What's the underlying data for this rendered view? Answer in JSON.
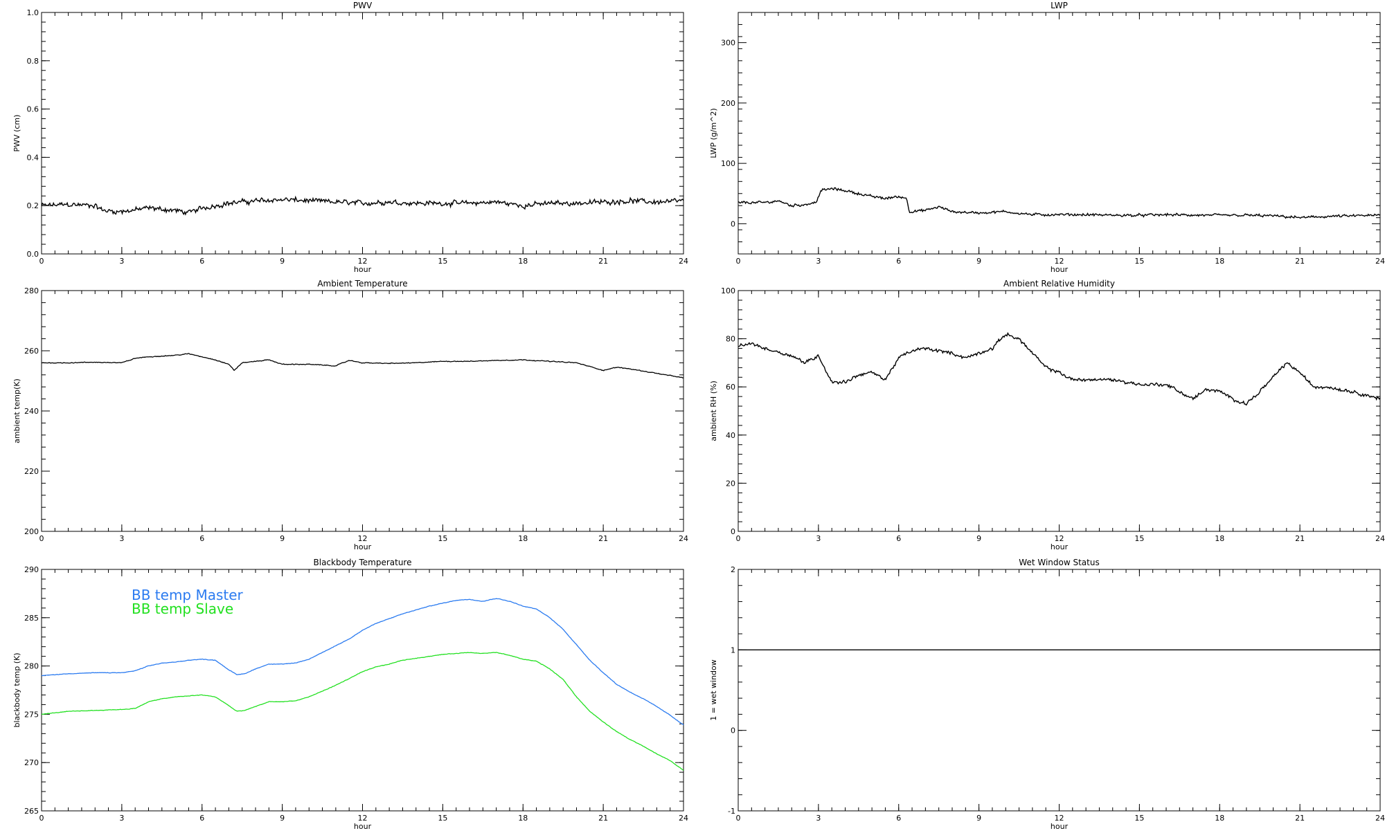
{
  "chart_data": [
    {
      "id": "pwv",
      "type": "line",
      "title": "PWV",
      "xlabel": "hour",
      "ylabel": "PWV (cm)",
      "xlim": [
        0,
        24
      ],
      "ylim": [
        0.0,
        1.0
      ],
      "xticks": [
        "0",
        "3",
        "6",
        "9",
        "12",
        "15",
        "18",
        "21",
        "24"
      ],
      "yticks": [
        "0.0",
        "0.2",
        "0.4",
        "0.6",
        "0.8",
        "1.0"
      ],
      "series": [
        {
          "color": "#000000",
          "noise": 0.012,
          "x": [
            0,
            1,
            2,
            2.3,
            3,
            4,
            5,
            5.5,
            6,
            7,
            8,
            9,
            10,
            11,
            12,
            13,
            14,
            15,
            16,
            17,
            18,
            19,
            20,
            21,
            22,
            23,
            24
          ],
          "y": [
            0.2,
            0.205,
            0.2,
            0.18,
            0.175,
            0.19,
            0.18,
            0.17,
            0.19,
            0.21,
            0.22,
            0.225,
            0.22,
            0.215,
            0.21,
            0.215,
            0.21,
            0.21,
            0.21,
            0.215,
            0.2,
            0.21,
            0.21,
            0.215,
            0.22,
            0.215,
            0.22
          ]
        }
      ]
    },
    {
      "id": "lwp",
      "type": "line",
      "title": "LWP",
      "xlabel": "hour",
      "ylabel": "LWP (g/m^2)",
      "xlim": [
        0,
        24
      ],
      "ylim": [
        -50,
        350
      ],
      "xticks": [
        "0",
        "3",
        "6",
        "9",
        "12",
        "15",
        "18",
        "21",
        "24"
      ],
      "yticks": [
        "0",
        "100",
        "200",
        "300"
      ],
      "series": [
        {
          "color": "#000000",
          "noise": 2.5,
          "x": [
            0,
            1,
            1.5,
            2,
            2.5,
            2.9,
            3.1,
            3.5,
            4,
            4.5,
            5,
            5.5,
            6,
            6.3,
            6.4,
            7,
            7.5,
            8,
            9,
            10,
            11,
            12,
            13,
            14,
            15,
            16,
            17,
            18,
            19,
            20,
            21,
            22,
            23,
            24
          ],
          "y": [
            35,
            35,
            38,
            30,
            32,
            35,
            55,
            58,
            55,
            50,
            45,
            42,
            45,
            42,
            20,
            22,
            28,
            20,
            18,
            20,
            15,
            15,
            15,
            14,
            14,
            15,
            14,
            14,
            14,
            13,
            10,
            12,
            13,
            14
          ]
        }
      ]
    },
    {
      "id": "ambient_temp",
      "type": "line",
      "title": "Ambient Temperature",
      "xlabel": "hour",
      "ylabel": "ambient temp(K)",
      "xlim": [
        0,
        24
      ],
      "ylim": [
        200,
        280
      ],
      "xticks": [
        "0",
        "3",
        "6",
        "9",
        "12",
        "15",
        "18",
        "21",
        "24"
      ],
      "yticks": [
        "200",
        "220",
        "240",
        "260",
        "280"
      ],
      "series": [
        {
          "color": "#000000",
          "noise": 0.15,
          "x": [
            0,
            1,
            2,
            3,
            3.5,
            4,
            5,
            5.5,
            6,
            6.5,
            7,
            7.2,
            7.5,
            8,
            8.5,
            9,
            10,
            11,
            11.5,
            12,
            13,
            14,
            15,
            16,
            17,
            18,
            19,
            20,
            21,
            21.5,
            22,
            23,
            24
          ],
          "y": [
            256,
            256,
            256.2,
            256,
            257.5,
            258,
            258.5,
            259,
            258,
            257,
            255.5,
            253.5,
            256,
            256.5,
            257,
            255.5,
            255.5,
            255,
            256.8,
            256,
            255.8,
            256,
            256.5,
            256.5,
            256.8,
            257,
            256.5,
            256,
            253.5,
            254.5,
            254,
            252.5,
            251
          ]
        }
      ]
    },
    {
      "id": "ambient_rh",
      "type": "line",
      "title": "Ambient Relative Humidity",
      "xlabel": "hour",
      "ylabel": "ambient RH (%)",
      "xlim": [
        0,
        24
      ],
      "ylim": [
        0,
        100
      ],
      "xticks": [
        "0",
        "3",
        "6",
        "9",
        "12",
        "15",
        "18",
        "21",
        "24"
      ],
      "yticks": [
        "0",
        "20",
        "40",
        "60",
        "80",
        "100"
      ],
      "series": [
        {
          "color": "#000000",
          "noise": 0.8,
          "x": [
            0,
            0.5,
            1,
            2,
            2.5,
            3,
            3.5,
            4,
            4.5,
            5,
            5.5,
            6,
            6.5,
            7,
            7.5,
            8,
            8.5,
            9,
            9.5,
            10,
            10.5,
            11,
            11.5,
            12,
            12.5,
            13,
            14,
            15,
            16,
            16.5,
            17,
            17.5,
            18,
            18.5,
            19,
            19.5,
            20,
            20.5,
            21,
            21.5,
            22,
            23,
            24
          ],
          "y": [
            77,
            78,
            76,
            73,
            70,
            73,
            62,
            62,
            65,
            66,
            63,
            72,
            75,
            76,
            75,
            74,
            72,
            74,
            76,
            82,
            80,
            74,
            68,
            66,
            63,
            63,
            63,
            61,
            61,
            58,
            55,
            59,
            58,
            55,
            53,
            58,
            64,
            70,
            66,
            60,
            60,
            58,
            55
          ]
        }
      ]
    },
    {
      "id": "blackbody_temp",
      "type": "line",
      "title": "Blackbody Temperature",
      "xlabel": "hour",
      "ylabel": "blackbody temp (K)",
      "xlim": [
        0,
        24
      ],
      "ylim": [
        265,
        290
      ],
      "xticks": [
        "0",
        "3",
        "6",
        "9",
        "12",
        "15",
        "18",
        "21",
        "24"
      ],
      "yticks": [
        "265",
        "270",
        "275",
        "280",
        "285",
        "290"
      ],
      "legend": [
        "BB temp Master",
        "BB temp Slave"
      ],
      "series": [
        {
          "name": "BB temp Master",
          "color": "#2b7bf0",
          "noise": 0.03,
          "x": [
            0,
            1,
            2,
            3,
            3.5,
            4,
            4.5,
            5,
            5.5,
            6,
            6.5,
            7,
            7.3,
            7.6,
            8,
            8.5,
            9,
            9.5,
            10,
            10.5,
            11,
            11.5,
            12,
            12.5,
            13,
            13.5,
            14,
            14.5,
            15,
            15.5,
            16,
            16.5,
            17,
            17.5,
            18,
            18.5,
            19,
            19.5,
            20,
            20.5,
            21,
            21.5,
            22,
            22.5,
            23,
            23.5,
            24
          ],
          "y": [
            279,
            279.2,
            279.3,
            279.3,
            279.5,
            280,
            280.3,
            280.4,
            280.6,
            280.7,
            280.6,
            279.6,
            279.1,
            279.2,
            279.7,
            280.2,
            280.2,
            280.3,
            280.7,
            281.4,
            282.1,
            282.8,
            283.7,
            284.4,
            284.9,
            285.4,
            285.8,
            286.2,
            286.5,
            286.8,
            286.9,
            286.7,
            287.0,
            286.7,
            286.2,
            285.9,
            285.0,
            283.8,
            282.2,
            280.6,
            279.3,
            278.1,
            277.3,
            276.6,
            275.8,
            274.9,
            273.9
          ]
        },
        {
          "name": "BB temp Slave",
          "color": "#22e020",
          "noise": 0.03,
          "x": [
            0,
            1,
            2,
            3,
            3.5,
            4,
            4.5,
            5,
            5.5,
            6,
            6.5,
            7,
            7.3,
            7.6,
            8,
            8.5,
            9,
            9.5,
            10,
            10.5,
            11,
            11.5,
            12,
            12.5,
            13,
            13.5,
            14,
            14.5,
            15,
            15.5,
            16,
            16.5,
            17,
            17.5,
            18,
            18.5,
            19,
            19.5,
            20,
            20.5,
            21,
            21.5,
            22,
            22.5,
            23,
            23.5,
            24
          ],
          "y": [
            275,
            275.3,
            275.4,
            275.5,
            275.6,
            276.3,
            276.6,
            276.8,
            276.9,
            277.0,
            276.8,
            275.9,
            275.3,
            275.4,
            275.8,
            276.3,
            276.3,
            276.4,
            276.8,
            277.4,
            278.0,
            278.7,
            279.4,
            279.9,
            280.2,
            280.6,
            280.8,
            281.0,
            281.2,
            281.3,
            281.4,
            281.3,
            281.4,
            281.1,
            280.7,
            280.5,
            279.7,
            278.6,
            276.8,
            275.3,
            274.2,
            273.2,
            272.4,
            271.7,
            270.9,
            270.2,
            269.2
          ]
        }
      ]
    },
    {
      "id": "wet_window",
      "type": "line",
      "title": "Wet Window Status",
      "xlabel": "hour",
      "ylabel": "1 = wet window",
      "xlim": [
        0,
        24
      ],
      "ylim": [
        -1,
        2
      ],
      "xticks": [
        "0",
        "3",
        "6",
        "9",
        "12",
        "15",
        "18",
        "21",
        "24"
      ],
      "yticks": [
        "-1",
        "0",
        "1",
        "2"
      ],
      "series": [
        {
          "color": "#000000",
          "noise": 0,
          "x": [
            0,
            24
          ],
          "y": [
            1,
            1
          ]
        }
      ]
    }
  ]
}
